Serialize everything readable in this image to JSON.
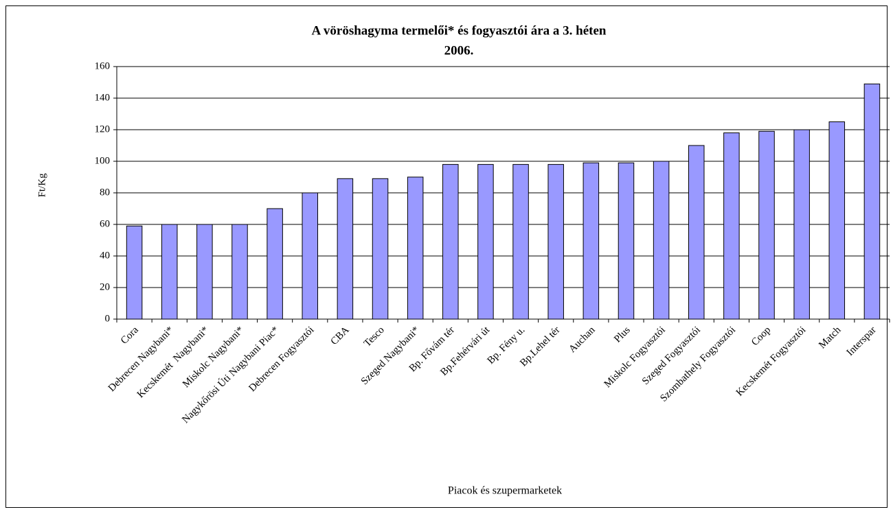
{
  "chart_data": {
    "type": "bar",
    "title": "A vöröshagyma termelői* és fogyasztói ára a 3. héten",
    "subtitle": "2006.",
    "ylabel": "Ft/Kg",
    "xlabel": "Piacok és szupermarketek",
    "categories": [
      "Cora",
      "Debrecen Nagybani*",
      "Kecskemét  Nagybani*",
      "Miskolc Nagybani*",
      "Nagykőrösi Úti Nagybani Piac*",
      "Debrecen Fogyasztói",
      "CBA",
      "Tesco",
      "Szeged Nagybani*",
      "Bp. Fővám tér",
      "Bp.Fehérvári út",
      "Bp. Fény u.",
      "Bp.Lehel tér",
      "Auchan",
      "Plus",
      "Miskolc Fogyasztói",
      "Szeged Fogyasztói",
      "Szombathely Fogyasztói",
      "Coop",
      "Kecskemét Fogyasztói",
      "Match",
      "Interspar"
    ],
    "values": [
      59,
      60,
      60,
      60,
      70,
      80,
      89,
      89,
      90,
      98,
      98,
      98,
      98,
      99,
      99,
      100,
      110,
      118,
      119,
      120,
      125,
      149
    ],
    "color": "#9999ff",
    "ylim": [
      0,
      160
    ],
    "yticks": [
      0,
      20,
      40,
      60,
      80,
      100,
      120,
      140,
      160
    ],
    "grid": true
  }
}
